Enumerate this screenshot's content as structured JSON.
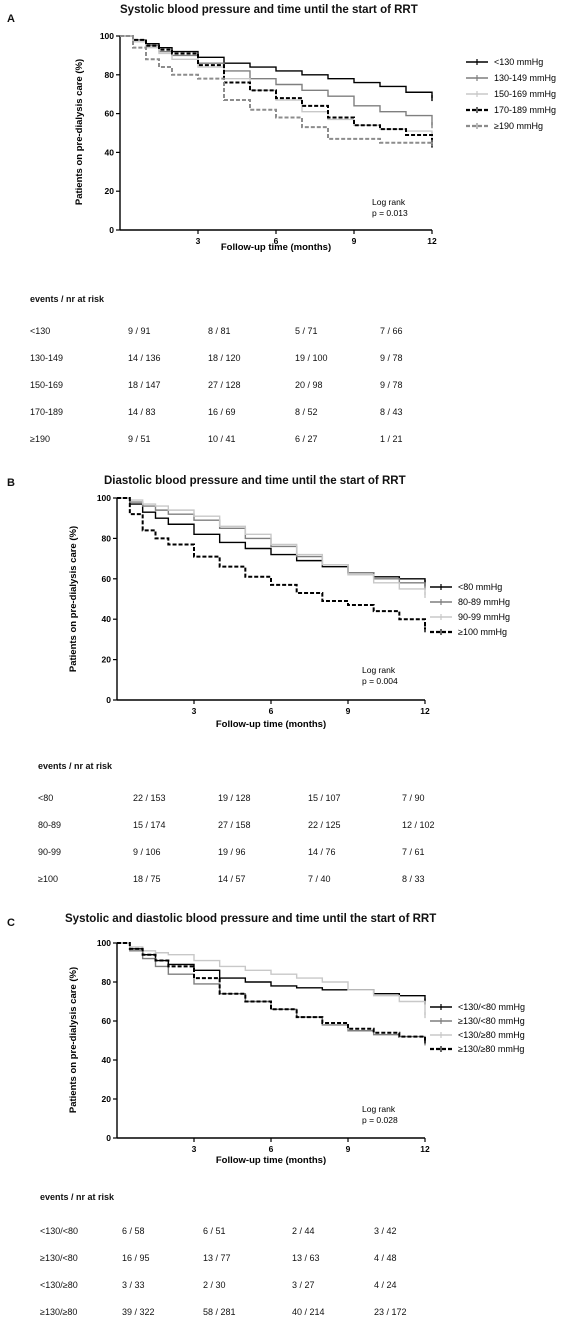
{
  "panels": [
    {
      "letter": "A",
      "title": "Systolic blood pressure and time until the start of RRT",
      "chart_data": {
        "type": "line",
        "title": "Systolic blood pressure and time until the start of RRT",
        "xlabel": "Follow-up time (months)",
        "ylabel": "Patients on pre-dialysis care (%)",
        "xlim": [
          0,
          12
        ],
        "ylim": [
          0,
          100
        ],
        "xticks": [
          3,
          6,
          9,
          12
        ],
        "yticks": [
          0,
          20,
          40,
          60,
          80,
          100
        ],
        "annotation": [
          "Log rank",
          "p = 0.013"
        ],
        "legend_position": "right",
        "series": [
          {
            "name": "<130 mmHg",
            "color": "#000000",
            "dash": "solid",
            "x": [
              0,
              0.5,
              1,
              1.5,
              2,
              3,
              4,
              5,
              6,
              7,
              8,
              9,
              10,
              11,
              12
            ],
            "y": [
              100,
              98,
              96,
              94,
              92,
              89,
              86,
              84,
              82,
              80,
              78,
              76,
              74,
              71,
              68
            ]
          },
          {
            "name": "130-149 mmHg",
            "color": "#7f7f7f",
            "dash": "solid",
            "x": [
              0,
              0.5,
              1,
              1.5,
              2,
              3,
              4,
              5,
              6,
              7,
              8,
              9,
              10,
              11,
              12
            ],
            "y": [
              100,
              98,
              95,
              92,
              90,
              86,
              82,
              78,
              75,
              72,
              69,
              64,
              61,
              59,
              54
            ]
          },
          {
            "name": "150-169 mmHg",
            "color": "#c8c8c8",
            "dash": "solid",
            "x": [
              0,
              0.5,
              1,
              1.5,
              2,
              3,
              4,
              5,
              6,
              7,
              8,
              9,
              10,
              11,
              12
            ],
            "y": [
              100,
              97,
              94,
              91,
              88,
              84,
              78,
              72,
              67,
              61,
              57,
              54,
              52,
              51,
              49
            ]
          },
          {
            "name": "170-189 mmHg",
            "color": "#000000",
            "dash": "dashed",
            "x": [
              0,
              0.5,
              1,
              1.5,
              2,
              3,
              4,
              5,
              6,
              7,
              8,
              9,
              10,
              11,
              12
            ],
            "y": [
              100,
              98,
              95,
              93,
              91,
              85,
              76,
              72,
              68,
              64,
              58,
              54,
              52,
              49,
              44
            ]
          },
          {
            "name": "≥190 mmHg",
            "color": "#8c8c8c",
            "dash": "dashed",
            "x": [
              0,
              0.5,
              1,
              1.5,
              2,
              3,
              4,
              5,
              6,
              7,
              8,
              9,
              10,
              11,
              12
            ],
            "y": [
              100,
              94,
              88,
              84,
              80,
              78,
              67,
              62,
              58,
              53,
              47,
              47,
              45,
              45,
              45
            ]
          }
        ]
      },
      "risk_table": {
        "header": "events / nr at risk",
        "rows": [
          {
            "label": "<130",
            "values": [
              "9 / 91",
              "8 / 81",
              "5 / 71",
              "7 / 66"
            ]
          },
          {
            "label": "130-149",
            "values": [
              "14 / 136",
              "18 / 120",
              "19 / 100",
              "9 / 78"
            ]
          },
          {
            "label": "150-169",
            "values": [
              "18 / 147",
              "27 / 128",
              "20 / 98",
              "9 / 78"
            ]
          },
          {
            "label": "170-189",
            "values": [
              "14 / 83",
              "16 / 69",
              "8 / 52",
              "8 / 43"
            ]
          },
          {
            "label": "≥190",
            "values": [
              "9 / 51",
              "10 / 41",
              "6 / 27",
              "1 / 21"
            ]
          }
        ]
      }
    },
    {
      "letter": "B",
      "title": "Diastolic blood pressure and time until the start of RRT",
      "chart_data": {
        "type": "line",
        "title": "Diastolic blood pressure and time until the start of RRT",
        "xlabel": "Follow-up time (months)",
        "ylabel": "Patients on pre-dialysis care (%)",
        "xlim": [
          0,
          12
        ],
        "ylim": [
          0,
          100
        ],
        "xticks": [
          3,
          6,
          9,
          12
        ],
        "yticks": [
          0,
          20,
          40,
          60,
          80,
          100
        ],
        "annotation": [
          "Log rank",
          "p = 0.004"
        ],
        "legend_position": "right",
        "series": [
          {
            "name": "<80 mmHg",
            "color": "#000000",
            "dash": "solid",
            "x": [
              0,
              0.5,
              1,
              1.5,
              2,
              3,
              4,
              5,
              6,
              7,
              8,
              9,
              10,
              11,
              12
            ],
            "y": [
              100,
              97,
              93,
              90,
              87,
              82,
              78,
              75,
              72,
              69,
              66,
              63,
              61,
              60,
              58
            ]
          },
          {
            "name": "80-89 mmHg",
            "color": "#7f7f7f",
            "dash": "solid",
            "x": [
              0,
              0.5,
              1,
              1.5,
              2,
              3,
              4,
              5,
              6,
              7,
              8,
              9,
              10,
              11,
              12
            ],
            "y": [
              100,
              98,
              96,
              94,
              92,
              89,
              85,
              80,
              76,
              71,
              67,
              63,
              60,
              58,
              56
            ]
          },
          {
            "name": "90-99 mmHg",
            "color": "#c8c8c8",
            "dash": "solid",
            "x": [
              0,
              0.5,
              1,
              1.5,
              2,
              3,
              4,
              5,
              6,
              7,
              8,
              9,
              10,
              11,
              12
            ],
            "y": [
              100,
              99,
              97,
              96,
              94,
              91,
              86,
              82,
              77,
              72,
              67,
              62,
              58,
              55,
              52
            ]
          },
          {
            "name": "≥100 mmHg",
            "color": "#000000",
            "dash": "dashed",
            "x": [
              0,
              0.5,
              1,
              1.5,
              2,
              3,
              4,
              5,
              6,
              7,
              8,
              9,
              10,
              11,
              12
            ],
            "y": [
              100,
              92,
              84,
              80,
              77,
              71,
              66,
              61,
              57,
              53,
              49,
              47,
              44,
              40,
              35
            ]
          }
        ]
      },
      "risk_table": {
        "header": "events / nr at risk",
        "rows": [
          {
            "label": "<80",
            "values": [
              "22 / 153",
              "19 / 128",
              "15 / 107",
              "7 / 90"
            ]
          },
          {
            "label": "80-89",
            "values": [
              "15 / 174",
              "27 / 158",
              "22 / 125",
              "12 / 102"
            ]
          },
          {
            "label": "90-99",
            "values": [
              "9 / 106",
              "19 / 96",
              "14 / 76",
              "7 / 61"
            ]
          },
          {
            "label": "≥100",
            "values": [
              "18 / 75",
              "14 / 57",
              "7 / 40",
              "8 / 33"
            ]
          }
        ]
      }
    },
    {
      "letter": "C",
      "title": "Systolic and diastolic blood pressure and time until the start of RRT",
      "chart_data": {
        "type": "line",
        "title": "Systolic and diastolic blood pressure and time until the start of RRT",
        "xlabel": "Follow-up time (months)",
        "ylabel": "Patients on pre-dialysis care (%)",
        "xlim": [
          0,
          12
        ],
        "ylim": [
          0,
          100
        ],
        "xticks": [
          3,
          6,
          9,
          12
        ],
        "yticks": [
          0,
          20,
          40,
          60,
          80,
          100
        ],
        "annotation": [
          "Log rank",
          "p = 0.028"
        ],
        "legend_position": "right",
        "series": [
          {
            "name": "<130/<80 mmHg",
            "color": "#000000",
            "dash": "solid",
            "x": [
              0,
              0.5,
              1,
              1.5,
              2,
              3,
              4,
              5,
              6,
              7,
              8,
              9,
              10,
              11,
              12
            ],
            "y": [
              100,
              97,
              94,
              91,
              89,
              86,
              82,
              80,
              78,
              77,
              76,
              76,
              74,
              73,
              70
            ]
          },
          {
            "name": "≥130/<80 mmHg",
            "color": "#7f7f7f",
            "dash": "solid",
            "x": [
              0,
              0.5,
              1,
              1.5,
              2,
              3,
              4,
              5,
              6,
              7,
              8,
              9,
              10,
              11,
              12
            ],
            "y": [
              100,
              96,
              92,
              88,
              84,
              79,
              74,
              70,
              66,
              62,
              58,
              55,
              53,
              52,
              49
            ]
          },
          {
            "name": "<130/≥80 mmHg",
            "color": "#c8c8c8",
            "dash": "solid",
            "x": [
              0,
              0.5,
              1,
              1.5,
              2,
              3,
              4,
              5,
              6,
              7,
              8,
              9,
              10,
              11,
              12
            ],
            "y": [
              100,
              98,
              96,
              95,
              94,
              91,
              88,
              86,
              84,
              82,
              80,
              76,
              73,
              70,
              63
            ]
          },
          {
            "name": "≥130/≥80 mmHg",
            "color": "#000000",
            "dash": "dashed",
            "x": [
              0,
              0.5,
              1,
              1.5,
              2,
              3,
              4,
              5,
              6,
              7,
              8,
              9,
              10,
              11,
              12
            ],
            "y": [
              100,
              97,
              94,
              91,
              88,
              82,
              74,
              70,
              66,
              62,
              59,
              56,
              54,
              52,
              50
            ]
          }
        ]
      },
      "risk_table": {
        "header": "events / nr at risk",
        "rows": [
          {
            "label": "<130/<80",
            "values": [
              "6 / 58",
              "6 / 51",
              "2 / 44",
              "3 / 42"
            ]
          },
          {
            "label": "≥130/<80",
            "values": [
              "16 / 95",
              "13 / 77",
              "13 / 63",
              "4 / 48"
            ]
          },
          {
            "label": "<130/≥80",
            "values": [
              "3 / 33",
              "2 / 30",
              "3 / 27",
              "4 / 24"
            ]
          },
          {
            "label": "≥130/≥80",
            "values": [
              "39 / 322",
              "58 / 281",
              "40 / 214",
              "23 / 172"
            ]
          }
        ]
      }
    }
  ]
}
